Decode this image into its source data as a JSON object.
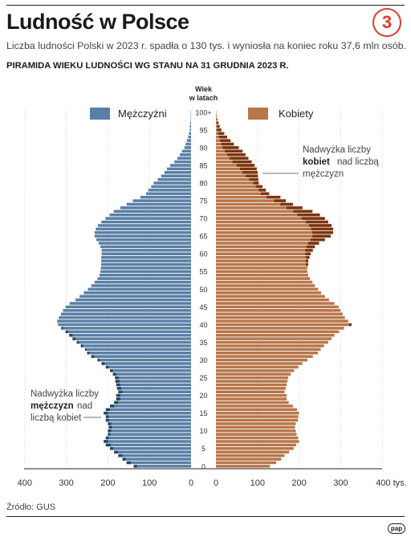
{
  "header": {
    "title": "Ludność w Polsce",
    "subtitle": "Liczba ludności Polski w 2023 r. spadła o 130 tys. i wyniosła na koniec roku 37,6 mln osób.",
    "badge": "3"
  },
  "footer": {
    "source": "Źródło: GUS",
    "logo": "pap"
  },
  "colors": {
    "male": "#5a7fa5",
    "male_excess": "#244566",
    "female": "#b8764a",
    "female_excess": "#7a3510"
  },
  "chart_data": {
    "type": "population-pyramid",
    "title": "PIRAMIDA WIEKU LUDNOŚCI WG STANU NA 31 GRUDNIA 2023 R.",
    "age_axis_label": [
      "Wiek",
      "w latach"
    ],
    "age_tick_labels": [
      "0",
      "5",
      "10",
      "15",
      "20",
      "25",
      "30",
      "35",
      "40",
      "45",
      "50",
      "55",
      "60",
      "65",
      "70",
      "75",
      "80",
      "85",
      "90",
      "95",
      "100+"
    ],
    "x_tick_labels_left": [
      "400",
      "300",
      "200",
      "100",
      "0"
    ],
    "x_tick_labels_right": [
      "0",
      "100",
      "200",
      "300",
      "400 tys."
    ],
    "xlim": [
      0,
      400
    ],
    "unit": "tys.",
    "series": [
      {
        "name": "Mężczyźni",
        "color": "#5a7fa5"
      },
      {
        "name": "Kobiety",
        "color": "#b8764a"
      }
    ],
    "annotations": {
      "male_excess": [
        "Nadwyżka liczby",
        "mężczyzn",
        "nad",
        "liczbą kobiet"
      ],
      "female_excess": [
        "Nadwyżka liczby",
        "kobiet",
        "nad liczbą",
        "mężczyzn"
      ]
    },
    "ages": [
      0,
      1,
      2,
      3,
      4,
      5,
      6,
      7,
      8,
      9,
      10,
      11,
      12,
      13,
      14,
      15,
      16,
      17,
      18,
      19,
      20,
      21,
      22,
      23,
      24,
      25,
      26,
      27,
      28,
      29,
      30,
      31,
      32,
      33,
      34,
      35,
      36,
      37,
      38,
      39,
      40,
      41,
      42,
      43,
      44,
      45,
      46,
      47,
      48,
      49,
      50,
      51,
      52,
      53,
      54,
      55,
      56,
      57,
      58,
      59,
      60,
      61,
      62,
      63,
      64,
      65,
      66,
      67,
      68,
      69,
      70,
      71,
      72,
      73,
      74,
      75,
      76,
      77,
      78,
      79,
      80,
      81,
      82,
      83,
      84,
      85,
      86,
      87,
      88,
      89,
      90,
      91,
      92,
      93,
      94,
      95,
      96,
      97,
      98,
      99,
      100
    ],
    "male": [
      138,
      155,
      165,
      175,
      185,
      195,
      205,
      210,
      205,
      200,
      200,
      198,
      200,
      205,
      205,
      210,
      205,
      195,
      185,
      180,
      180,
      175,
      178,
      180,
      182,
      183,
      188,
      195,
      205,
      215,
      225,
      240,
      250,
      255,
      265,
      275,
      285,
      293,
      302,
      312,
      320,
      322,
      318,
      313,
      308,
      302,
      292,
      278,
      268,
      258,
      248,
      240,
      232,
      225,
      220,
      218,
      217,
      216,
      216,
      216,
      215,
      215,
      218,
      222,
      228,
      232,
      232,
      229,
      224,
      216,
      206,
      196,
      186,
      170,
      155,
      140,
      122,
      108,
      103,
      96,
      90,
      80,
      72,
      64,
      58,
      50,
      40,
      33,
      27,
      22,
      16,
      13,
      10,
      7,
      5,
      3,
      3,
      2,
      1,
      1,
      1
    ],
    "female": [
      130,
      145,
      157,
      165,
      176,
      187,
      193,
      200,
      198,
      194,
      192,
      190,
      192,
      197,
      198,
      200,
      195,
      185,
      175,
      170,
      170,
      165,
      168,
      170,
      172,
      174,
      180,
      188,
      198,
      208,
      220,
      233,
      245,
      252,
      260,
      270,
      278,
      285,
      296,
      308,
      326,
      318,
      310,
      305,
      300,
      295,
      285,
      272,
      262,
      253,
      246,
      238,
      232,
      226,
      222,
      220,
      220,
      222,
      222,
      225,
      228,
      233,
      238,
      248,
      262,
      276,
      282,
      282,
      278,
      270,
      262,
      250,
      232,
      208,
      185,
      168,
      155,
      128,
      120,
      112,
      103,
      102,
      101,
      100,
      98,
      93,
      86,
      78,
      71,
      64,
      55,
      43,
      35,
      27,
      20,
      13,
      9,
      6,
      4,
      2,
      1
    ],
    "female_excess_threshold": 275
  }
}
